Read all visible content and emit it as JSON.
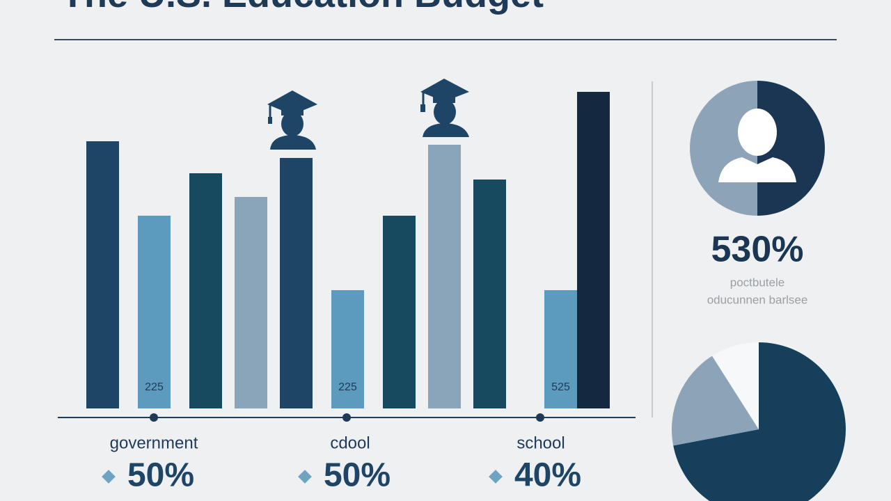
{
  "title": "The U.S. Education Budget",
  "chart_data": [
    {
      "type": "bar",
      "ylim": [
        0,
        470
      ],
      "values": [
        384,
        277,
        338,
        304,
        360,
        170,
        277,
        379,
        329,
        170,
        455
      ],
      "colors": [
        "#1f4566",
        "#5c9bbd",
        "#174a5e",
        "#8aa4ba",
        "#1f4566",
        "#5c9bbd",
        "#174a5e",
        "#8aa4ba",
        "#174a5e",
        "#5c9bbd",
        "#14283f"
      ],
      "inner_labels": [
        "225",
        "225",
        "525"
      ]
    },
    {
      "type": "pie",
      "values": [
        50,
        50
      ],
      "colors": [
        "#1a3652",
        "#8da3b8"
      ]
    },
    {
      "type": "pie",
      "values": [
        72,
        19,
        9
      ],
      "colors": [
        "#163f5c",
        "#8da3b8",
        "#f7f8f9"
      ]
    }
  ],
  "stats": [
    {
      "label": "government",
      "value": "50%"
    },
    {
      "label": "cdool",
      "value": "50%"
    },
    {
      "label": "school",
      "value": "40%"
    }
  ],
  "highlight": {
    "value": "530%",
    "caption": [
      "poctbutele",
      "oducunnen barlsee"
    ]
  }
}
